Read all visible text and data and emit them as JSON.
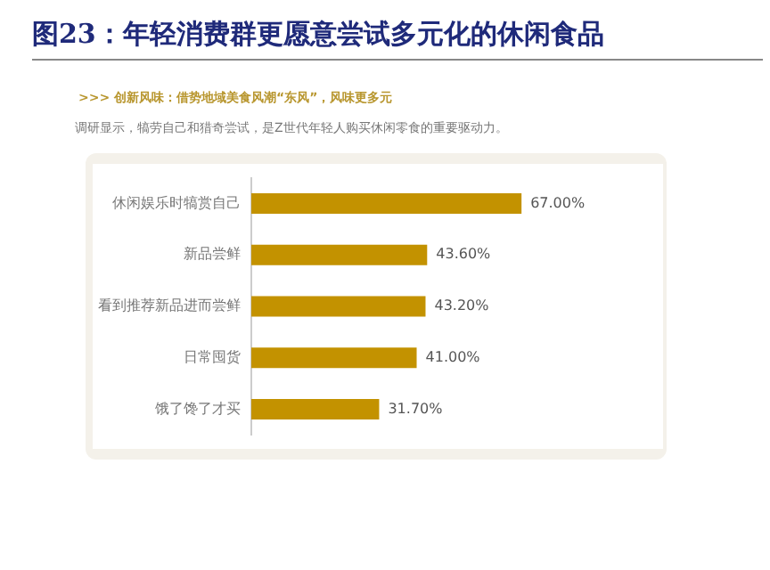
{
  "chart_data": {
    "type": "bar",
    "orientation": "horizontal",
    "title": "图23：年轻消费群更愿意尝试多元化的休闲食品",
    "subtitle": ">>> 创新风味：借势地域美食风潮“东风”，风味更多元",
    "annotations": [
      "调研显示，犒劳自己和猎奇尝试，是Z世代年轻人购买休闲零食的重要驱动力。"
    ],
    "categories": [
      "休闲娱乐时犒赏自己",
      "新品尝鲜",
      "看到推荐新品进而尝鲜",
      "日常囤货",
      "饿了馋了才买"
    ],
    "values": [
      67.0,
      43.6,
      43.2,
      41.0,
      31.7
    ],
    "value_labels": [
      "67.00%",
      "43.60%",
      "43.20%",
      "41.00%",
      "31.70%"
    ],
    "color": "#c39200",
    "grid": false,
    "legend": false,
    "tick_labels": "y"
  }
}
